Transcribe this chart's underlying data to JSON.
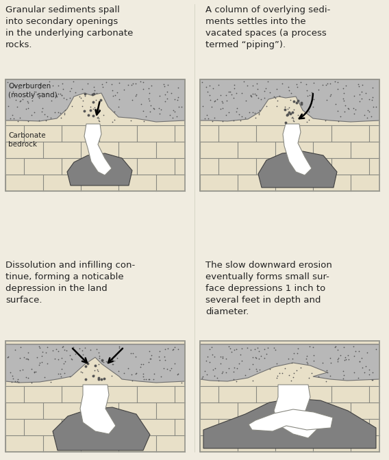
{
  "bg_color": "#f0ece0",
  "panel_bg": "#f0ece0",
  "sand_color": "#b8b8b8",
  "bedrock_color": "#e8e0c8",
  "bedrock_line_color": "#888880",
  "dark_sediment": "#808080",
  "text_color": "#222222",
  "border_color": "#999990",
  "texts": {
    "top_left": "Granular sediments spall\ninto secondary openings\nin the underlying carbonate\nrocks.",
    "top_right": "A column of overlying sedi-\nments settles into the\nvacated spaces (a process\ntermed “piping”).",
    "bottom_left": "Dissolution and infilling con-\ntinue, forming a noticable\ndepression in the land\nsurface.",
    "bottom_right": "The slow downward erosion\neventually forms small sur-\nface depressions 1 inch to\nseveral feet in depth and\ndiameter."
  },
  "labels": {
    "overburden": "Overburden\n(mostly sand)",
    "bedrock": "Carbonate\nbedrock"
  },
  "font_size_text": 9.5,
  "font_size_label": 8.5
}
